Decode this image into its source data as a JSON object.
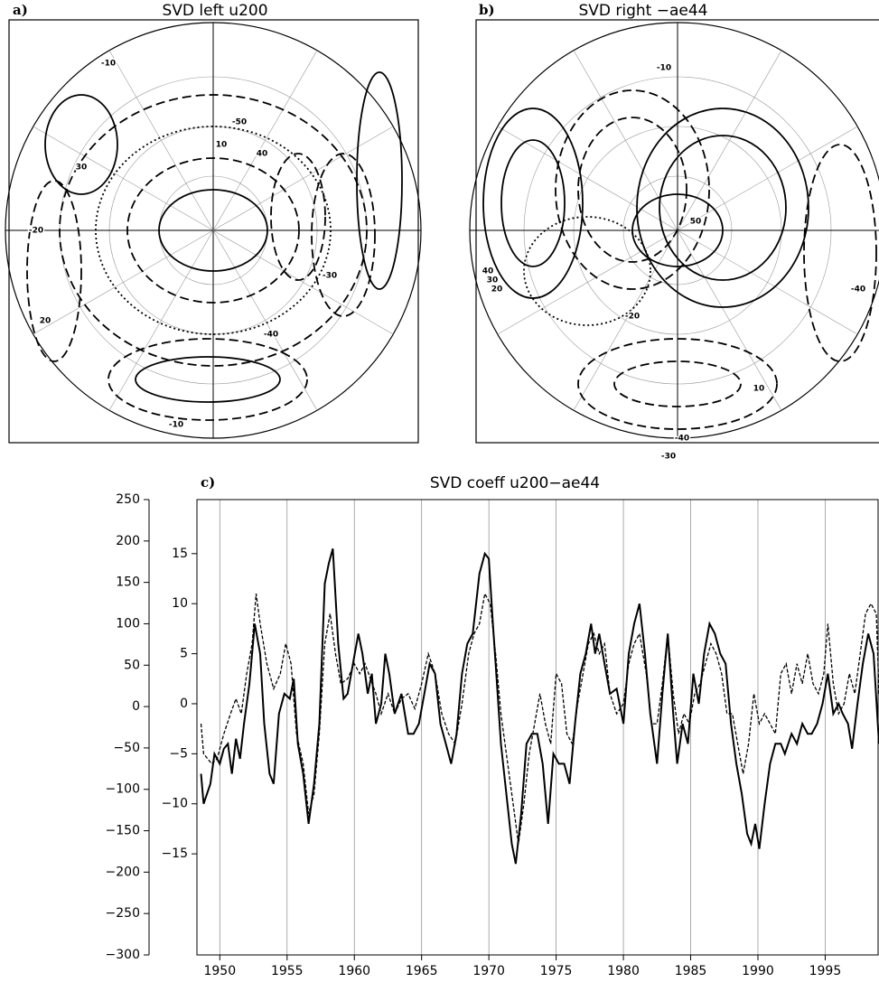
{
  "maps": [
    {
      "label": "a)",
      "title": "SVD left u200",
      "contour_labels": [
        "-10",
        "30",
        "40",
        "20",
        "-20",
        "-40",
        "-50",
        "10",
        "-30",
        "-10"
      ]
    },
    {
      "label": "b)",
      "title": "SVD right −ae44",
      "contour_labels": [
        "-10",
        "40",
        "30",
        "20",
        "-40",
        "-30",
        "10",
        "-20",
        "50",
        "-40"
      ]
    }
  ],
  "chart_data": {
    "type": "line",
    "label": "c)",
    "title": "SVD coeff u200−ae44",
    "xlim": [
      1948.3,
      1999
    ],
    "xticks": [
      1950,
      1955,
      1960,
      1965,
      1970,
      1975,
      1980,
      1985,
      1990,
      1995
    ],
    "grid": true,
    "ylim": [
      -300,
      250
    ],
    "yticks": [
      {
        "value": -300,
        "label": "−300"
      },
      {
        "value": -250,
        "label": "−250"
      },
      {
        "value": -200,
        "label": "−200"
      },
      {
        "value": -150,
        "label": "−150"
      },
      {
        "value": -100,
        "label": "−100"
      },
      {
        "value": -50,
        "label": "−50"
      },
      0,
      50,
      100,
      150,
      200,
      250
    ],
    "y2lim": [
      -25.1,
      20.4
    ],
    "y2ticks": [
      {
        "value": -15,
        "label": "−15"
      },
      {
        "value": -10,
        "label": "−10"
      },
      {
        "value": -5,
        "label": "−5"
      },
      0,
      5,
      10,
      15
    ],
    "series": [
      {
        "color": "#000",
        "style": "solid",
        "axis": "y2",
        "x": [
          1948.6,
          1948.8,
          1949.3,
          1949.6,
          1950,
          1950.3,
          1950.6,
          1950.9,
          1951.2,
          1951.5,
          1951.8,
          1952.2,
          1952.6,
          1953,
          1953.3,
          1953.7,
          1954,
          1954.4,
          1954.8,
          1955.2,
          1955.5,
          1955.8,
          1956.2,
          1956.6,
          1957,
          1957.4,
          1957.8,
          1958.1,
          1958.4,
          1958.8,
          1959.2,
          1959.5,
          1959.9,
          1960.3,
          1960.6,
          1961,
          1961.3,
          1961.6,
          1962,
          1962.3,
          1962.6,
          1963,
          1963.5,
          1964,
          1964.4,
          1964.8,
          1965.2,
          1965.6,
          1966,
          1966.4,
          1966.8,
          1967.2,
          1967.6,
          1968,
          1968.4,
          1968.8,
          1969.3,
          1969.7,
          1970,
          1970.3,
          1970.6,
          1970.9,
          1971.3,
          1971.7,
          1972,
          1972.4,
          1972.8,
          1973.2,
          1973.6,
          1974,
          1974.4,
          1974.8,
          1975.2,
          1975.6,
          1976,
          1976.4,
          1976.8,
          1977.2,
          1977.6,
          1977.9,
          1978.2,
          1978.6,
          1979,
          1979.5,
          1980,
          1980.4,
          1980.8,
          1981.2,
          1981.6,
          1982,
          1982.5,
          1982.9,
          1983.3,
          1983.7,
          1984,
          1984.4,
          1984.8,
          1985.2,
          1985.6,
          1986,
          1986.4,
          1986.8,
          1987.2,
          1987.6,
          1988,
          1988.4,
          1988.8,
          1989.2,
          1989.5,
          1989.8,
          1990.1,
          1990.5,
          1990.9,
          1991.3,
          1991.7,
          1992,
          1992.5,
          1992.9,
          1993.3,
          1993.7,
          1994,
          1994.4,
          1994.8,
          1995.2,
          1995.6,
          1996,
          1996.3,
          1996.7,
          1997,
          1997.4,
          1997.8,
          1998.2,
          1998.6,
          1999
        ],
        "values": [
          -7,
          -10,
          -8,
          -5,
          -6,
          -4.5,
          -4,
          -7,
          -3.5,
          -5.5,
          -2,
          2,
          8,
          5,
          -2,
          -7,
          -8,
          -1,
          1,
          0.5,
          2.5,
          -4,
          -7,
          -12,
          -8,
          -2,
          12,
          14,
          15.5,
          6,
          0.5,
          1,
          4,
          7,
          5,
          1,
          3,
          -2,
          0,
          5,
          3,
          -1,
          1,
          -3,
          -3,
          -2,
          1,
          4,
          3,
          -2,
          -4,
          -6,
          -3,
          3,
          6,
          7,
          13,
          15,
          14.5,
          8,
          2,
          -4,
          -9,
          -14,
          -16,
          -11,
          -4,
          -3,
          -3,
          -6,
          -12,
          -5,
          -6,
          -6,
          -8,
          -2,
          3,
          5,
          8,
          5,
          7,
          4,
          1,
          1.5,
          -2,
          5,
          8,
          10,
          5,
          -1,
          -6,
          1,
          7,
          -1,
          -6,
          -2,
          -4,
          3,
          0,
          5,
          8,
          7,
          5,
          4,
          -2,
          -6,
          -9,
          -13,
          -14,
          -12,
          -14.5,
          -10,
          -6,
          -4,
          -4,
          -5,
          -3,
          -4,
          -2,
          -3,
          -3,
          -2,
          0,
          3,
          -1,
          0,
          -1,
          -2,
          -4.5,
          0,
          4,
          7,
          5,
          -4
        ]
      },
      {
        "color": "#000",
        "style": "dashed",
        "axis": "y2",
        "x": [
          1948.6,
          1948.8,
          1949.4,
          1949.8,
          1950.3,
          1950.8,
          1951.2,
          1951.6,
          1952,
          1952.4,
          1952.7,
          1953,
          1953.5,
          1954,
          1954.5,
          1954.9,
          1955.3,
          1955.7,
          1956.2,
          1956.6,
          1957,
          1957.4,
          1957.8,
          1958.2,
          1958.6,
          1959,
          1959.5,
          1960,
          1960.4,
          1960.8,
          1961.2,
          1961.6,
          1962,
          1962.5,
          1963,
          1963.5,
          1964,
          1964.5,
          1965,
          1965.5,
          1966,
          1966.5,
          1967,
          1967.5,
          1968,
          1968.5,
          1968.9,
          1969.3,
          1969.7,
          1970.1,
          1970.5,
          1970.9,
          1971.3,
          1971.8,
          1972.2,
          1972.6,
          1973,
          1973.4,
          1973.8,
          1974.2,
          1974.6,
          1975,
          1975.4,
          1975.8,
          1976.2,
          1976.6,
          1977,
          1977.4,
          1977.8,
          1978.2,
          1978.6,
          1979,
          1979.5,
          1980,
          1980.4,
          1980.8,
          1981.2,
          1981.7,
          1982.1,
          1982.5,
          1982.9,
          1983.3,
          1983.7,
          1984.1,
          1984.5,
          1984.9,
          1985.3,
          1985.7,
          1986.1,
          1986.5,
          1986.9,
          1987.3,
          1987.7,
          1988.1,
          1988.5,
          1988.9,
          1989.3,
          1989.7,
          1990.1,
          1990.5,
          1990.9,
          1991.3,
          1991.7,
          1992.1,
          1992.5,
          1992.9,
          1993.3,
          1993.7,
          1994.1,
          1994.5,
          1994.9,
          1995.2,
          1995.6,
          1996,
          1996.4,
          1996.8,
          1997.2,
          1997.6,
          1998,
          1998.4,
          1998.8,
          1999
        ],
        "values": [
          -2,
          -5,
          -6,
          -5.5,
          -3,
          -1,
          0.5,
          -1,
          3,
          6,
          11,
          8,
          4,
          1.5,
          3,
          6,
          4,
          -3,
          -6,
          -11,
          -9,
          -3,
          6,
          9,
          5,
          2,
          2.5,
          4,
          3,
          4,
          2.5,
          1,
          -1,
          1,
          -1,
          0.5,
          1,
          -0.5,
          2,
          5,
          3,
          -1,
          -3,
          -4,
          0,
          5,
          7,
          8,
          11,
          10,
          5,
          -1,
          -5,
          -10,
          -14,
          -10,
          -5,
          -2,
          1,
          -2,
          -4,
          3,
          2,
          -3,
          -4,
          0,
          3,
          6,
          7,
          5,
          6,
          1,
          -1,
          0,
          4,
          6,
          7,
          3,
          -2,
          -2,
          2,
          7,
          1,
          -3,
          -1,
          -2,
          1,
          2,
          4,
          6,
          5,
          3,
          -1,
          -1,
          -4,
          -7,
          -4,
          1,
          -2,
          -1,
          -2,
          -3,
          3,
          4,
          1,
          4,
          2,
          5,
          2,
          1,
          3,
          8,
          2,
          -1,
          0,
          3,
          1,
          5,
          9,
          10,
          9,
          1
        ]
      }
    ]
  }
}
